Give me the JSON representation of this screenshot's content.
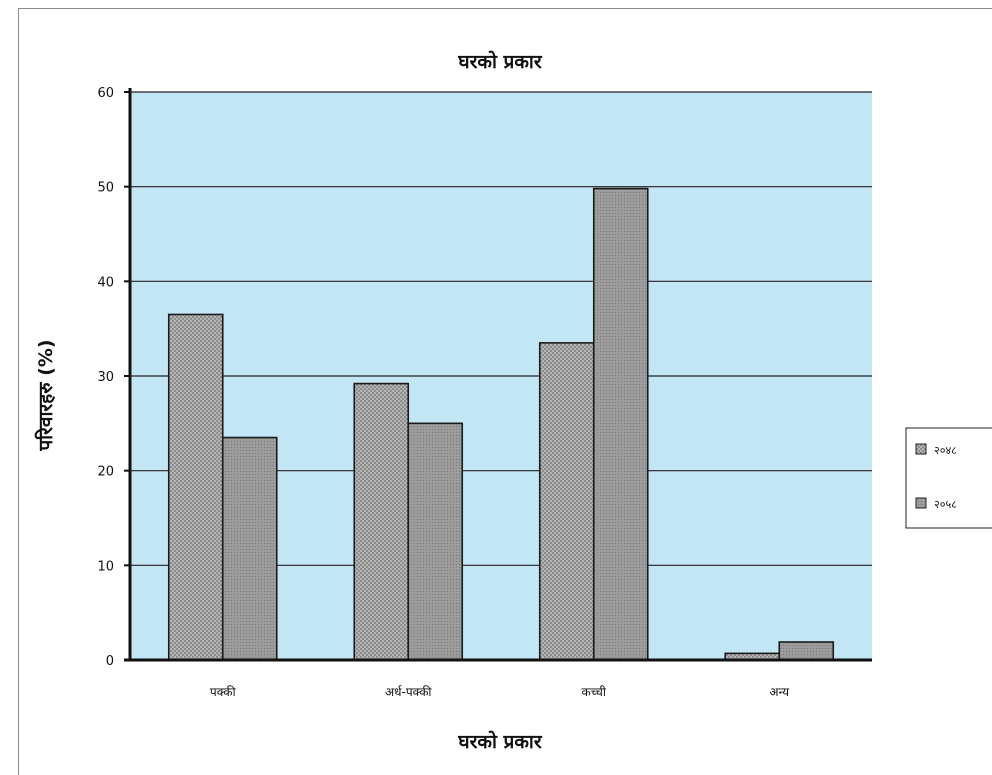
{
  "chart_data": {
    "type": "bar",
    "title": "घरको प्रकार",
    "xlabel": "घरको प्रकार",
    "ylabel": "परिवारहरु (%)",
    "categories": [
      "पक्की",
      "अर्ध-पक्की",
      "कच्ची",
      "अन्य"
    ],
    "series": [
      {
        "name": "२०४८",
        "values": [
          36.5,
          29.2,
          33.5,
          0.7
        ]
      },
      {
        "name": "२०५८",
        "values": [
          23.5,
          25.0,
          49.8,
          1.9
        ]
      }
    ],
    "ylim": [
      0,
      60
    ],
    "yticks": [
      "0",
      "10",
      "20",
      "30",
      "40",
      "50",
      "60"
    ],
    "grid": true,
    "legend_position": "right",
    "colors": {
      "plot_bg": "#c3e6f5",
      "series_1": "#b7b7b7",
      "series_2": "#9a9a9a",
      "gridline": "#222222"
    }
  }
}
